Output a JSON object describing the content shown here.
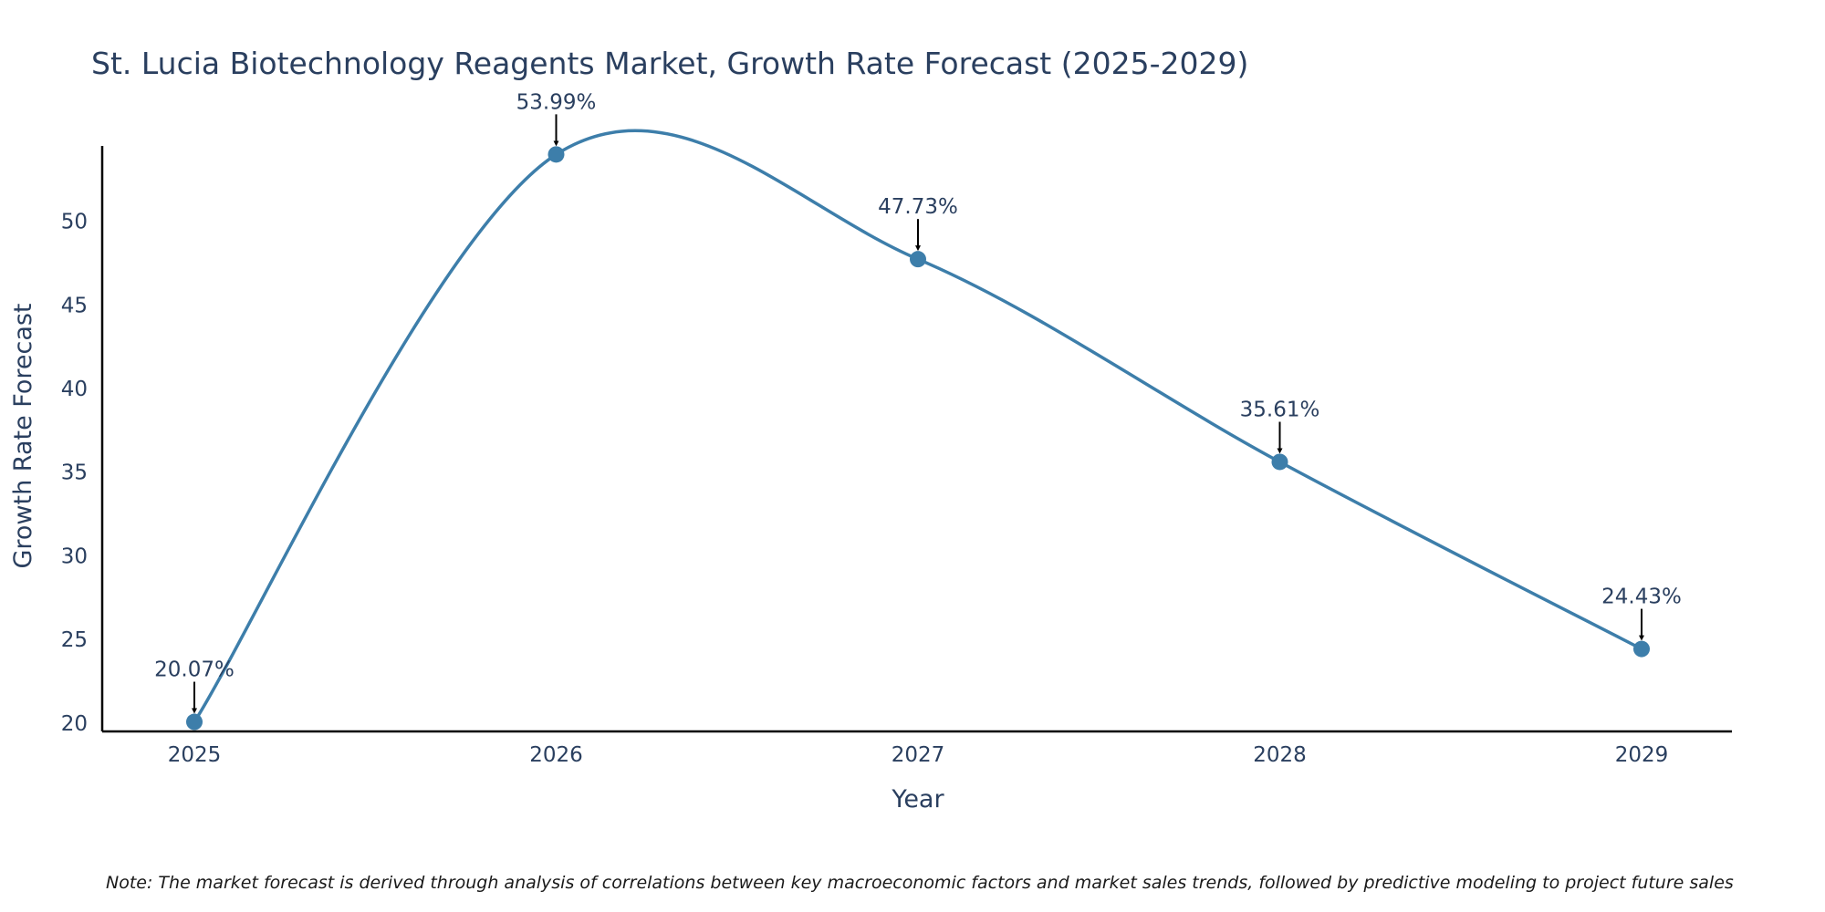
{
  "chart_data": {
    "type": "line",
    "title": "St. Lucia Biotechnology Reagents Market, Growth Rate Forecast (2025-2029)",
    "xlabel": "Year",
    "ylabel": "Growth Rate Forecast",
    "categories": [
      "2025",
      "2026",
      "2027",
      "2028",
      "2029"
    ],
    "values": [
      20.07,
      53.99,
      47.73,
      35.61,
      24.43
    ],
    "data_labels": [
      "20.07%",
      "53.99%",
      "47.73%",
      "35.61%",
      "24.43%"
    ],
    "y_ticks": [
      20,
      25,
      30,
      35,
      40,
      45,
      50
    ],
    "y_tick_labels": [
      "20",
      "25",
      "30",
      "35",
      "40",
      "45",
      "50"
    ],
    "ylim": [
      19.5,
      54.5
    ],
    "line_shape": "spline",
    "line_color": "#3d7eaa",
    "marker_color": "#3d7eaa",
    "arrow_color": "#000000",
    "axis_color": "#000000",
    "grid": false,
    "note": "Note: The market forecast is derived through analysis of correlations between key macroeconomic factors and market sales trends, followed by predictive modeling to project future sales"
  }
}
